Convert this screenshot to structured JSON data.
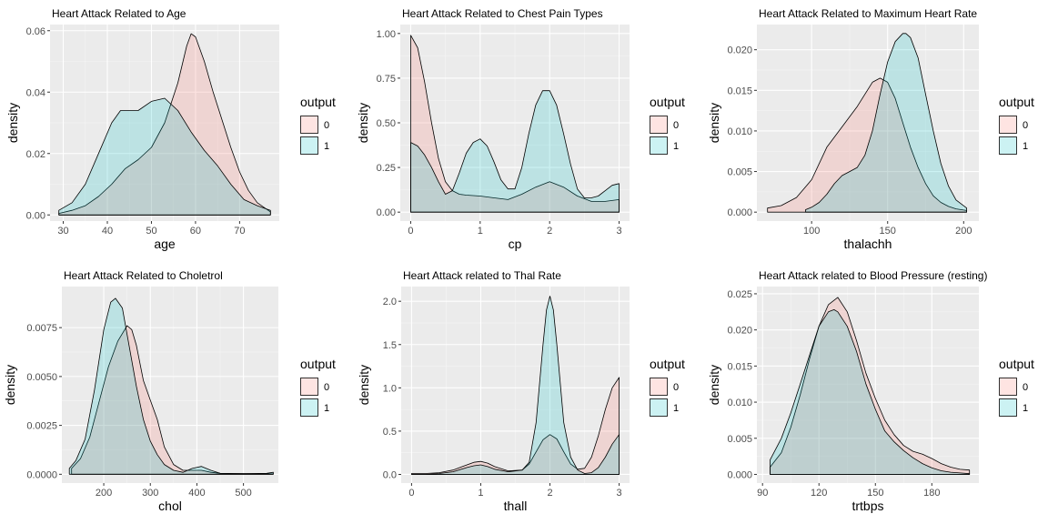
{
  "chart_data": [
    {
      "type": "area",
      "title": "Heart Attack Related to Age",
      "xlabel": "age",
      "ylabel": "density",
      "xlim": [
        27,
        79
      ],
      "ylim": [
        -0.002,
        0.062
      ],
      "xticks": [
        30,
        40,
        50,
        60,
        70
      ],
      "xticklabels": [
        "30",
        "40",
        "50",
        "60",
        "70"
      ],
      "yticks": [
        0,
        0.02,
        0.04,
        0.06
      ],
      "yticklabels": [
        "0.00",
        "0.02",
        "0.04",
        "0.06"
      ],
      "legend": {
        "title": "output",
        "labels": [
          "0",
          "1"
        ]
      },
      "series": [
        {
          "name": "0",
          "color": "#F8766D",
          "x": [
            29,
            32,
            35,
            38,
            41,
            44,
            47,
            50,
            53,
            56,
            58,
            59,
            60,
            62,
            64,
            66,
            68,
            70,
            72,
            74,
            77
          ],
          "y": [
            0.0005,
            0.0015,
            0.003,
            0.006,
            0.01,
            0.015,
            0.018,
            0.022,
            0.03,
            0.043,
            0.055,
            0.059,
            0.058,
            0.05,
            0.04,
            0.031,
            0.022,
            0.014,
            0.008,
            0.004,
            0.001
          ]
        },
        {
          "name": "1",
          "color": "#00BFC4",
          "x": [
            29,
            32,
            35,
            38,
            41,
            43,
            45,
            47,
            50,
            53,
            56,
            59,
            62,
            65,
            68,
            71,
            74,
            77
          ],
          "y": [
            0.0015,
            0.004,
            0.01,
            0.02,
            0.03,
            0.034,
            0.034,
            0.034,
            0.037,
            0.038,
            0.034,
            0.027,
            0.021,
            0.016,
            0.01,
            0.005,
            0.003,
            0.0015
          ]
        }
      ]
    },
    {
      "type": "area",
      "title": "Heart Attack Related to Chest Pain Types",
      "xlabel": "cp",
      "ylabel": "density",
      "xlim": [
        -0.15,
        3.15
      ],
      "ylim": [
        -0.05,
        1.05
      ],
      "xticks": [
        0,
        1,
        2,
        3
      ],
      "xticklabels": [
        "0",
        "1",
        "2",
        "3"
      ],
      "yticks": [
        0,
        0.25,
        0.5,
        0.75,
        1.0
      ],
      "yticklabels": [
        "0.00",
        "0.25",
        "0.50",
        "0.75",
        "1.00"
      ],
      "legend": {
        "title": "output",
        "labels": [
          "0",
          "1"
        ]
      },
      "series": [
        {
          "name": "0",
          "color": "#F8766D",
          "x": [
            0,
            0.1,
            0.2,
            0.3,
            0.4,
            0.5,
            0.6,
            0.7,
            0.8,
            1.0,
            1.2,
            1.4,
            1.6,
            1.8,
            2.0,
            2.2,
            2.4,
            2.6,
            2.8,
            3.0
          ],
          "y": [
            0.99,
            0.92,
            0.73,
            0.5,
            0.3,
            0.17,
            0.12,
            0.1,
            0.095,
            0.09,
            0.08,
            0.07,
            0.1,
            0.14,
            0.17,
            0.14,
            0.09,
            0.06,
            0.06,
            0.07
          ]
        },
        {
          "name": "1",
          "color": "#00BFC4",
          "x": [
            0,
            0.1,
            0.2,
            0.3,
            0.4,
            0.5,
            0.6,
            0.7,
            0.8,
            0.9,
            1.0,
            1.1,
            1.2,
            1.3,
            1.4,
            1.5,
            1.6,
            1.7,
            1.8,
            1.9,
            2.0,
            2.1,
            2.2,
            2.3,
            2.4,
            2.5,
            2.6,
            2.7,
            2.8,
            2.9,
            3.0
          ],
          "y": [
            0.39,
            0.37,
            0.32,
            0.25,
            0.17,
            0.1,
            0.12,
            0.22,
            0.33,
            0.39,
            0.41,
            0.37,
            0.28,
            0.18,
            0.13,
            0.13,
            0.25,
            0.44,
            0.6,
            0.68,
            0.68,
            0.6,
            0.44,
            0.27,
            0.13,
            0.08,
            0.08,
            0.09,
            0.12,
            0.15,
            0.16
          ]
        }
      ]
    },
    {
      "type": "area",
      "title": "Heart Attack Related to Maximum Heart Rate",
      "xlabel": "thalachh",
      "ylabel": "density",
      "xlim": [
        64,
        210
      ],
      "ylim": [
        -0.0011,
        0.0231
      ],
      "xticks": [
        100,
        150,
        200
      ],
      "xticklabels": [
        "100",
        "150",
        "200"
      ],
      "yticks": [
        0,
        0.005,
        0.01,
        0.015,
        0.02
      ],
      "yticklabels": [
        "0.000",
        "0.005",
        "0.010",
        "0.015",
        "0.020"
      ],
      "legend": {
        "title": "output",
        "labels": [
          "0",
          "1"
        ]
      },
      "series": [
        {
          "name": "0",
          "color": "#F8766D",
          "x": [
            71,
            80,
            90,
            100,
            110,
            120,
            130,
            140,
            145,
            150,
            155,
            160,
            165,
            170,
            175,
            180,
            185,
            190,
            195,
            202
          ],
          "y": [
            0.0005,
            0.0008,
            0.0018,
            0.004,
            0.008,
            0.0105,
            0.013,
            0.016,
            0.0165,
            0.016,
            0.014,
            0.011,
            0.008,
            0.0055,
            0.0035,
            0.002,
            0.0012,
            0.0007,
            0.0004,
            0.0002
          ]
        },
        {
          "name": "1",
          "color": "#00BFC4",
          "x": [
            96,
            100,
            105,
            110,
            115,
            120,
            125,
            130,
            135,
            140,
            145,
            150,
            155,
            160,
            162,
            165,
            170,
            175,
            180,
            185,
            190,
            195,
            202
          ],
          "y": [
            0.0003,
            0.0006,
            0.0012,
            0.0022,
            0.0035,
            0.0045,
            0.005,
            0.0055,
            0.007,
            0.01,
            0.0145,
            0.0185,
            0.021,
            0.022,
            0.022,
            0.0215,
            0.019,
            0.0145,
            0.01,
            0.006,
            0.0032,
            0.0015,
            0.0005
          ]
        }
      ]
    },
    {
      "type": "area",
      "title": "Heart Attack Related to Choletrol",
      "xlabel": "chol",
      "ylabel": "density",
      "xlim": [
        110,
        575
      ],
      "ylim": [
        -0.00045,
        0.0096
      ],
      "xticks": [
        200,
        300,
        400,
        500
      ],
      "xticklabels": [
        "200",
        "300",
        "400",
        "500"
      ],
      "yticks": [
        0,
        0.0025,
        0.005,
        0.0075
      ],
      "yticklabels": [
        "0.0000",
        "0.0025",
        "0.0050",
        "0.0075"
      ],
      "legend": {
        "title": "output",
        "labels": [
          "0",
          "1"
        ]
      },
      "series": [
        {
          "name": "0",
          "color": "#F8766D",
          "x": [
            131,
            150,
            170,
            190,
            210,
            230,
            250,
            260,
            270,
            285,
            300,
            315,
            330,
            350,
            370,
            390,
            410,
            430,
            450,
            500,
            550,
            564
          ],
          "y": [
            0.0003,
            0.0008,
            0.0019,
            0.0037,
            0.0055,
            0.0068,
            0.0076,
            0.0074,
            0.0066,
            0.0048,
            0.0038,
            0.0028,
            0.0014,
            0.0005,
            0.0002,
            0.0002,
            0.0002,
            0.0001,
            5e-05,
            3e-05,
            2e-05,
            2e-05
          ]
        },
        {
          "name": "1",
          "color": "#00BFC4",
          "x": [
            126,
            140,
            160,
            180,
            200,
            215,
            225,
            240,
            255,
            270,
            285,
            300,
            315,
            330,
            350,
            370,
            390,
            410,
            430,
            450,
            500,
            550,
            564
          ],
          "y": [
            0.0003,
            0.0007,
            0.0018,
            0.0043,
            0.0074,
            0.0088,
            0.009,
            0.0085,
            0.0065,
            0.0045,
            0.0028,
            0.0017,
            0.001,
            0.0005,
            0.0002,
            0.0001,
            0.0003,
            0.0004,
            0.0002,
            5e-05,
            3e-05,
            5e-05,
            0.0001
          ]
        }
      ]
    },
    {
      "type": "area",
      "title": "Heart Attack related to Thal Rate",
      "xlabel": "thall",
      "ylabel": "density",
      "xlim": [
        -0.15,
        3.15
      ],
      "ylim": [
        -0.1,
        2.17
      ],
      "xticks": [
        0,
        1,
        2,
        3
      ],
      "xticklabels": [
        "0",
        "1",
        "2",
        "3"
      ],
      "yticks": [
        0,
        0.5,
        1.0,
        1.5,
        2.0
      ],
      "yticklabels": [
        "0.0",
        "0.5",
        "1.0",
        "1.5",
        "2.0"
      ],
      "legend": {
        "title": "output",
        "labels": [
          "0",
          "1"
        ]
      },
      "series": [
        {
          "name": "0",
          "color": "#F8766D",
          "x": [
            0,
            0.2,
            0.4,
            0.6,
            0.8,
            0.9,
            1.0,
            1.1,
            1.2,
            1.4,
            1.6,
            1.7,
            1.8,
            1.9,
            2.0,
            2.1,
            2.2,
            2.3,
            2.4,
            2.5,
            2.6,
            2.7,
            2.8,
            2.9,
            3.0
          ],
          "y": [
            0.01,
            0.01,
            0.02,
            0.05,
            0.11,
            0.14,
            0.15,
            0.13,
            0.09,
            0.04,
            0.05,
            0.12,
            0.26,
            0.4,
            0.46,
            0.41,
            0.26,
            0.12,
            0.06,
            0.07,
            0.2,
            0.45,
            0.75,
            1.0,
            1.12
          ]
        },
        {
          "name": "1",
          "color": "#00BFC4",
          "x": [
            0,
            0.2,
            0.4,
            0.6,
            0.8,
            0.9,
            1.0,
            1.1,
            1.2,
            1.4,
            1.6,
            1.7,
            1.8,
            1.85,
            1.9,
            1.95,
            2.0,
            2.05,
            2.1,
            2.15,
            2.2,
            2.3,
            2.4,
            2.5,
            2.6,
            2.7,
            2.8,
            2.9,
            3.0
          ],
          "y": [
            0.0,
            0.0,
            0.01,
            0.03,
            0.08,
            0.1,
            0.11,
            0.09,
            0.06,
            0.03,
            0.05,
            0.14,
            0.6,
            1.05,
            1.5,
            1.9,
            2.06,
            1.9,
            1.5,
            1.05,
            0.6,
            0.2,
            0.05,
            0.01,
            0.02,
            0.08,
            0.2,
            0.35,
            0.46
          ]
        }
      ]
    },
    {
      "type": "area",
      "title": "Heart Attack related to Blood Pressure (resting)",
      "xlabel": "trtbps",
      "ylabel": "density",
      "xlim": [
        87,
        205
      ],
      "ylim": [
        -0.0012,
        0.026
      ],
      "xticks": [
        90,
        120,
        150,
        180
      ],
      "xticklabels": [
        "90",
        "120",
        "150",
        "180"
      ],
      "yticks": [
        0,
        0.005,
        0.01,
        0.015,
        0.02,
        0.025
      ],
      "yticklabels": [
        "0.000",
        "0.005",
        "0.010",
        "0.015",
        "0.020",
        "0.025"
      ],
      "legend": {
        "title": "output",
        "labels": [
          "0",
          "1"
        ]
      },
      "series": [
        {
          "name": "0",
          "color": "#F8766D",
          "x": [
            94,
            100,
            105,
            110,
            115,
            120,
            125,
            130,
            135,
            140,
            145,
            150,
            155,
            160,
            165,
            170,
            175,
            180,
            185,
            190,
            195,
            200
          ],
          "y": [
            0.001,
            0.003,
            0.0065,
            0.011,
            0.016,
            0.0205,
            0.0235,
            0.0245,
            0.0225,
            0.0185,
            0.014,
            0.0105,
            0.0075,
            0.0055,
            0.004,
            0.0032,
            0.0028,
            0.0022,
            0.0015,
            0.001,
            0.0007,
            0.0006
          ]
        },
        {
          "name": "1",
          "color": "#00BFC4",
          "x": [
            94,
            100,
            105,
            110,
            115,
            120,
            125,
            128,
            130,
            135,
            140,
            145,
            150,
            155,
            160,
            165,
            170,
            175,
            180,
            185,
            190,
            195,
            200
          ],
          "y": [
            0.002,
            0.005,
            0.0085,
            0.0125,
            0.0165,
            0.0205,
            0.0225,
            0.0228,
            0.0225,
            0.0205,
            0.017,
            0.0125,
            0.009,
            0.006,
            0.0045,
            0.0033,
            0.0023,
            0.0015,
            0.0009,
            0.0005,
            0.0003,
            0.0002,
            0.0001
          ]
        }
      ]
    }
  ]
}
